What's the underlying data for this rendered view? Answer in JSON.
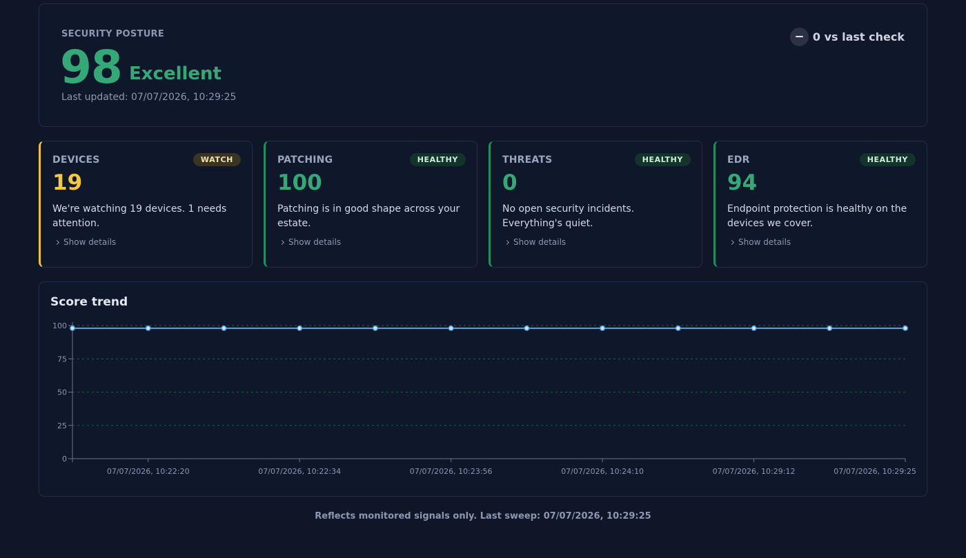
{
  "posture": {
    "label": "SECURITY POSTURE",
    "score": "98",
    "rating": "Excellent",
    "updated": "Last updated: 07/07/2026, 10:29:25",
    "delta": "0 vs last check",
    "accent": "#34a877"
  },
  "metrics": [
    {
      "title": "DEVICES",
      "badge": "WATCH",
      "value": "19",
      "desc": "We're watching 19 devices. 1 needs attention.",
      "details": "Show details",
      "status": "watch"
    },
    {
      "title": "PATCHING",
      "badge": "HEALTHY",
      "value": "100",
      "desc": "Patching is in good shape across your estate.",
      "details": "Show details",
      "status": "healthy"
    },
    {
      "title": "THREATS",
      "badge": "HEALTHY",
      "value": "0",
      "desc": "No open security incidents. Everything's quiet.",
      "details": "Show details",
      "status": "healthy"
    },
    {
      "title": "EDR",
      "badge": "HEALTHY",
      "value": "94",
      "desc": "Endpoint protection is healthy on the devices we cover.",
      "details": "Show details",
      "status": "healthy"
    }
  ],
  "trend": {
    "title": "Score trend"
  },
  "chart_data": {
    "type": "line",
    "title": "",
    "series": [
      {
        "values": [
          98,
          98,
          98,
          98,
          98,
          98,
          98,
          98,
          98,
          98,
          98,
          98
        ]
      }
    ],
    "ylim": [
      0,
      100
    ],
    "yticks": [
      0,
      25,
      50,
      75,
      100
    ],
    "xtick_labels": [
      "07/07/2026, 10:22:20",
      "07/07/2026, 10:22:34",
      "07/07/2026, 10:23:56",
      "07/07/2026, 10:24:10",
      "07/07/2026, 10:29:12",
      "07/07/2026, 10:29:25"
    ],
    "xtick_positions": [
      1,
      3,
      5,
      7,
      9,
      11
    ],
    "grid": true,
    "line_color": "#5aa3e0",
    "grid_color": "#1f5a4c"
  },
  "footer": "Reflects monitored signals only. Last sweep: 07/07/2026, 10:29:25"
}
